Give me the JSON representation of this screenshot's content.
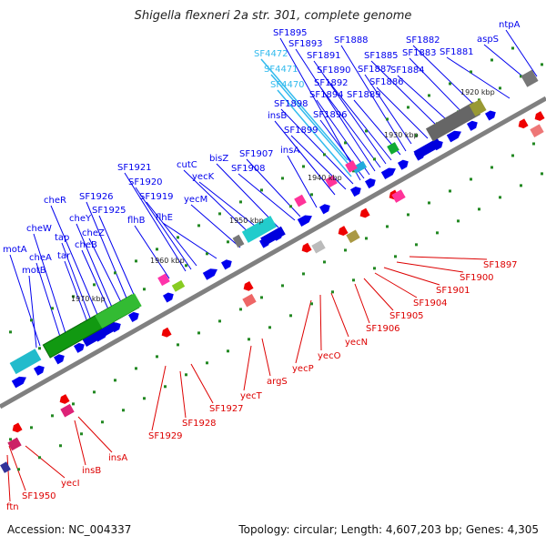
{
  "title": "Shigella flexneri 2a str. 301, complete genome",
  "footer": {
    "accession": "Accession: NC_004337",
    "summary": "Topology: circular; Length: 4,607,203 bp; Genes: 4,305"
  },
  "colors": {
    "top_label": "#0000ee",
    "top_label_alt": "#33bbee",
    "bottom_label": "#dd0000",
    "backbone": "#808080",
    "tick": "#228822"
  },
  "kbp_ticks": [
    "1920 kbp",
    "1930 kbp",
    "1940 kbp",
    "1950 kbp",
    "1960 kbp",
    "1970 kbp"
  ],
  "top_genes": [
    "ntpA",
    "aspS",
    "SF1881",
    "SF1882",
    "SF1883",
    "SF1884",
    "SF1885",
    "SF1886",
    "SF1887",
    "SF1888",
    "SF1889",
    "SF1890",
    "SF1891",
    "SF1892",
    "SF1893",
    "SF1894",
    "SF1895",
    "SF1896",
    "SF1898",
    "SF1899",
    "SF4472",
    "SF4471",
    "SF4470",
    "insB",
    "insA",
    "SF1907",
    "SF1908",
    "bisZ",
    "yecK",
    "cutC",
    "yecM",
    "flhE",
    "SF1919",
    "SF1920",
    "SF1921",
    "flhB",
    "SF1925",
    "SF1926",
    "cheZ",
    "cheY",
    "cheB",
    "cheR",
    "tap",
    "tar",
    "cheW",
    "cheA",
    "motA",
    "motB"
  ],
  "bottom_genes": [
    "SF1897",
    "SF1900",
    "SF1901",
    "SF1904",
    "SF1905",
    "SF1906",
    "yecN",
    "yecO",
    "yecP",
    "argS",
    "yecT",
    "SF1927",
    "SF1928",
    "SF1929",
    "insA",
    "insB",
    "yecI",
    "SF1950",
    "ftn"
  ]
}
